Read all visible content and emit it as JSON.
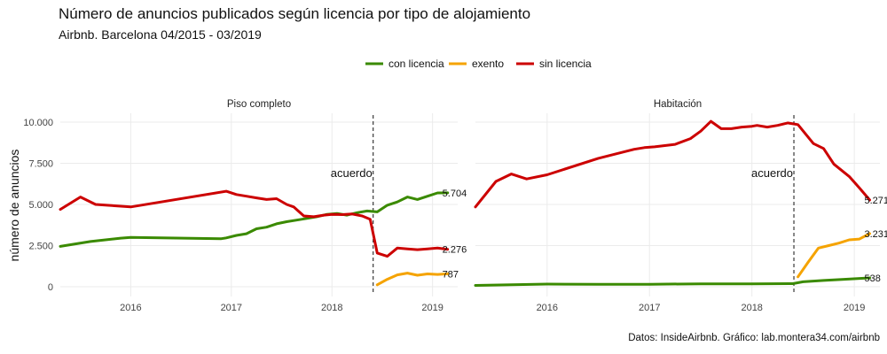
{
  "title": "Número de anuncios publicados según licencia por tipo de alojamiento",
  "subtitle": "Airbnb. Barcelona 04/2015 - 03/2019",
  "caption": "Datos: InsideAirbnb. Gráfico: lab.montera34.com/airbnb",
  "chart_data": {
    "type": "line",
    "ylabel": "número de anuncios",
    "ylim": [
      0,
      10000
    ],
    "yticks": [
      0,
      2500,
      5000,
      7500,
      10000
    ],
    "ytick_labels": [
      "0",
      "2.500",
      "5.000",
      "7.500",
      "10.000"
    ],
    "xlim": [
      2015.3,
      2019.25
    ],
    "xticks": [
      2016,
      2017,
      2018,
      2019
    ],
    "xtick_labels": [
      "2016",
      "2017",
      "2018",
      "2019"
    ],
    "legend": {
      "position": "top",
      "entries": [
        {
          "name": "con licencia",
          "color": "#3a8a00"
        },
        {
          "name": "exento",
          "color": "#f5a300"
        },
        {
          "name": "sin licencia",
          "color": "#cc0000"
        }
      ]
    },
    "annotation": {
      "label": "acuerdo",
      "x": 2018.41
    },
    "panels": [
      {
        "title": "Piso completo",
        "series": [
          {
            "name": "con licencia",
            "color": "#3a8a00",
            "end_label": "5.704",
            "x": [
              2015.3,
              2015.6,
              2015.9,
              2016.0,
              2016.9,
              2016.95,
              2017.05,
              2017.15,
              2017.25,
              2017.35,
              2017.45,
              2017.55,
              2017.65,
              2017.75,
              2017.85,
              2017.95,
              2018.05,
              2018.15,
              2018.25,
              2018.35,
              2018.45,
              2018.55,
              2018.65,
              2018.75,
              2018.85,
              2018.95,
              2019.05,
              2019.15
            ],
            "y": [
              2450,
              2750,
              2950,
              3000,
              2920,
              2970,
              3120,
              3220,
              3520,
              3620,
              3820,
              3950,
              4050,
              4150,
              4250,
              4400,
              4450,
              4350,
              4500,
              4600,
              4550,
              4950,
              5150,
              5450,
              5300,
              5500,
              5700,
              5704
            ]
          },
          {
            "name": "exento",
            "color": "#f5a300",
            "end_label": "787",
            "x": [
              2018.45,
              2018.55,
              2018.65,
              2018.75,
              2018.85,
              2018.95,
              2019.05,
              2019.15
            ],
            "y": [
              120,
              450,
              720,
              830,
              700,
              780,
              750,
              787
            ]
          },
          {
            "name": "sin licencia",
            "color": "#cc0000",
            "end_label": "2.276",
            "x": [
              2015.3,
              2015.5,
              2015.65,
              2016.0,
              2016.95,
              2017.05,
              2017.15,
              2017.25,
              2017.35,
              2017.45,
              2017.55,
              2017.62,
              2017.72,
              2017.82,
              2017.92,
              2018.0,
              2018.1,
              2018.2,
              2018.3,
              2018.38,
              2018.45,
              2018.55,
              2018.65,
              2018.75,
              2018.85,
              2018.95,
              2019.05,
              2019.15
            ],
            "y": [
              4700,
              5450,
              5000,
              4850,
              5800,
              5600,
              5500,
              5400,
              5300,
              5350,
              5000,
              4850,
              4300,
              4250,
              4350,
              4400,
              4380,
              4420,
              4300,
              4100,
              2050,
              1850,
              2350,
              2300,
              2250,
              2300,
              2350,
              2276
            ]
          }
        ]
      },
      {
        "title": "Habitación",
        "series": [
          {
            "name": "con licencia",
            "color": "#3a8a00",
            "end_label": "538",
            "x": [
              2015.3,
              2016.0,
              2016.5,
              2017.0,
              2017.5,
              2018.0,
              2018.4,
              2018.5,
              2018.7,
              2018.9,
              2019.15
            ],
            "y": [
              80,
              160,
              150,
              150,
              180,
              170,
              190,
              300,
              380,
              450,
              538
            ]
          },
          {
            "name": "exento",
            "color": "#f5a300",
            "end_label": "3.231",
            "x": [
              2018.45,
              2018.55,
              2018.65,
              2018.75,
              2018.85,
              2018.95,
              2019.05,
              2019.15
            ],
            "y": [
              600,
              1500,
              2350,
              2500,
              2650,
              2850,
              2900,
              3231
            ]
          },
          {
            "name": "sin licencia",
            "color": "#cc0000",
            "end_label": "5.271",
            "x": [
              2015.3,
              2015.5,
              2015.65,
              2015.8,
              2016.0,
              2016.5,
              2016.85,
              2016.95,
              2017.05,
              2017.25,
              2017.4,
              2017.5,
              2017.6,
              2017.7,
              2017.8,
              2017.9,
              2018.0,
              2018.05,
              2018.15,
              2018.25,
              2018.35,
              2018.45,
              2018.6,
              2018.7,
              2018.8,
              2018.95,
              2019.05,
              2019.15
            ],
            "y": [
              4850,
              6400,
              6850,
              6550,
              6800,
              7800,
              8350,
              8450,
              8500,
              8650,
              9000,
              9450,
              10050,
              9600,
              9600,
              9700,
              9750,
              9800,
              9700,
              9800,
              9950,
              9850,
              8700,
              8400,
              7450,
              6700,
              6000,
              5271
            ]
          }
        ]
      }
    ]
  }
}
